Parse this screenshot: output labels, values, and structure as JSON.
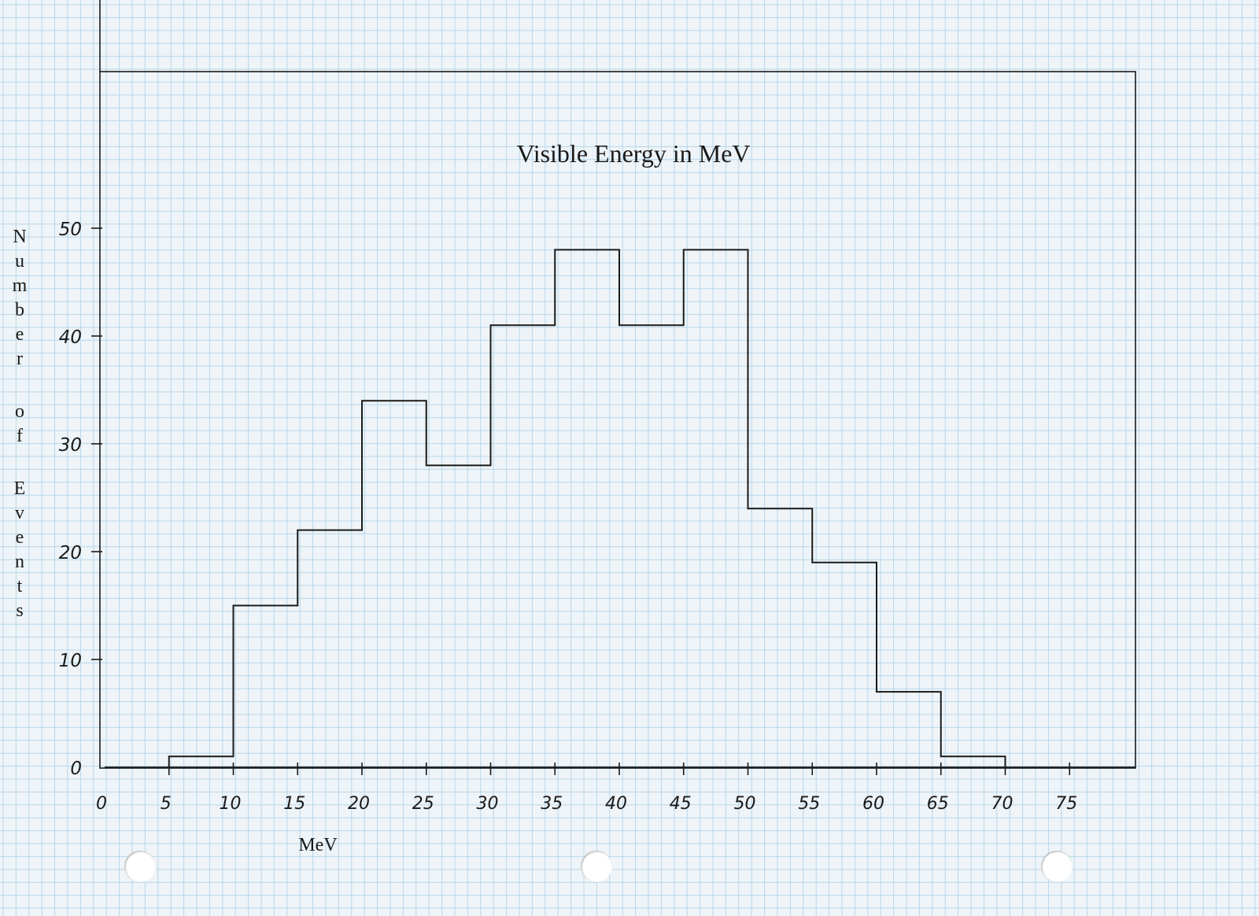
{
  "chart_data": {
    "type": "bar",
    "title": "Visible Energy in MeV",
    "xlabel": "MeV",
    "ylabel": "Number of Events",
    "bin_edges": [
      5,
      10,
      15,
      20,
      25,
      30,
      35,
      40,
      45,
      50,
      55,
      60,
      65,
      70
    ],
    "values": [
      1,
      15,
      22,
      34,
      28,
      41,
      48,
      41,
      48,
      24,
      19,
      7,
      1
    ],
    "xlim": [
      0,
      80
    ],
    "ylim": [
      0,
      50
    ],
    "x_ticks": [
      0,
      5,
      10,
      15,
      20,
      25,
      30,
      35,
      40,
      45,
      50,
      55,
      60,
      65,
      70,
      75
    ],
    "x_tick_labels": [
      "0",
      "5",
      "10",
      "15",
      "20",
      "25",
      "30",
      "35",
      "40",
      "45",
      "50",
      "55",
      "60",
      "65",
      "70",
      "75"
    ],
    "y_ticks": [
      0,
      10,
      20,
      30,
      40,
      50
    ],
    "y_tick_labels": [
      "0",
      "10",
      "20",
      "30",
      "40",
      "50"
    ],
    "style": "step histogram hand-drawn on graph paper",
    "grid": true
  },
  "colors": {
    "paper": "#eef4f8",
    "grid_line": "#b9d6ea",
    "ink": "#1a1a1a"
  }
}
